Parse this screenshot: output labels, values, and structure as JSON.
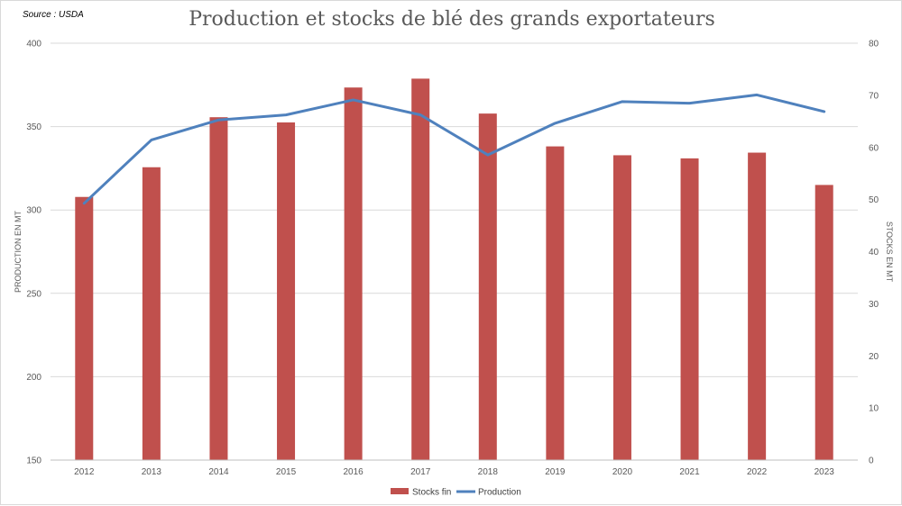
{
  "source": "Source : USDA",
  "chart_data": {
    "type": "bar+line",
    "title": "Production et stocks de blé des grands exportateurs",
    "categories": [
      "2012",
      "2013",
      "2014",
      "2015",
      "2016",
      "2017",
      "2018",
      "2019",
      "2020",
      "2021",
      "2022",
      "2023"
    ],
    "series": [
      {
        "name": "Stocks fin",
        "type": "bar",
        "axis": "right",
        "color": "#c0504d",
        "values": [
          50.5,
          56.2,
          65.8,
          64.8,
          71.5,
          73.2,
          66.5,
          60.2,
          58.5,
          57.9,
          59.0,
          52.8
        ]
      },
      {
        "name": "Production",
        "type": "line",
        "axis": "left",
        "color": "#4f81bd",
        "values": [
          304,
          342,
          354,
          357,
          366,
          357,
          333,
          352,
          365,
          364,
          369,
          359
        ]
      }
    ],
    "y_left": {
      "label": "PRODUCTION EN MT",
      "min": 150,
      "max": 400,
      "ticks": [
        150,
        200,
        250,
        300,
        350,
        400
      ]
    },
    "y_right": {
      "label": "STOCKS EN MT",
      "min": 0,
      "max": 80,
      "ticks": [
        0,
        10,
        20,
        30,
        40,
        50,
        60,
        70,
        80
      ]
    },
    "grid": true,
    "legend_position": "bottom"
  }
}
